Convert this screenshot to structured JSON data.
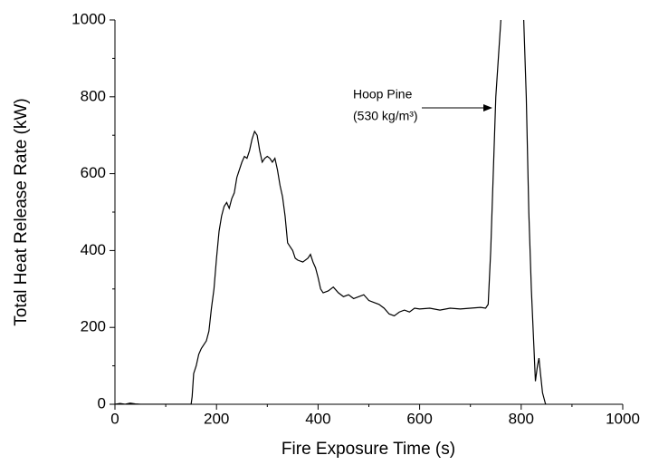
{
  "chart_data": {
    "type": "line",
    "xlabel": "Fire Exposure Time (s)",
    "ylabel": "Total Heat Release Rate  (kW)",
    "annotation": [
      "Hoop Pine",
      "(530 kg/m³)"
    ],
    "color": "#000000",
    "xlim": [
      0,
      1000
    ],
    "ylim": [
      0,
      1000
    ],
    "xticks": [
      0,
      200,
      400,
      600,
      800,
      1000
    ],
    "yticks": [
      0,
      200,
      400,
      600,
      800,
      1000
    ],
    "xminorticks": [
      100,
      300,
      500,
      700,
      900
    ],
    "yminorticks": [
      100,
      300,
      500,
      700,
      900
    ],
    "x": [
      0,
      10,
      20,
      30,
      40,
      50,
      100,
      150,
      152,
      155,
      160,
      165,
      170,
      180,
      185,
      190,
      195,
      200,
      205,
      210,
      215,
      220,
      225,
      230,
      235,
      240,
      245,
      250,
      255,
      260,
      265,
      270,
      275,
      280,
      285,
      290,
      295,
      300,
      305,
      310,
      315,
      320,
      325,
      330,
      335,
      340,
      345,
      350,
      355,
      360,
      370,
      380,
      385,
      390,
      395,
      400,
      405,
      410,
      420,
      430,
      440,
      450,
      460,
      470,
      480,
      490,
      500,
      510,
      520,
      530,
      540,
      550,
      560,
      570,
      580,
      590,
      600,
      620,
      640,
      660,
      680,
      700,
      720,
      730,
      735,
      740,
      745,
      750,
      755,
      760,
      765,
      800,
      805,
      810,
      815,
      820,
      825,
      828,
      832,
      835,
      838,
      842,
      848,
      850
    ],
    "values": [
      0,
      2,
      0,
      3,
      1,
      0,
      0,
      0,
      20,
      80,
      100,
      130,
      145,
      165,
      190,
      250,
      300,
      380,
      450,
      490,
      515,
      525,
      510,
      535,
      550,
      590,
      610,
      630,
      645,
      640,
      660,
      690,
      710,
      700,
      660,
      630,
      640,
      645,
      640,
      630,
      640,
      610,
      570,
      540,
      490,
      420,
      410,
      400,
      380,
      375,
      370,
      380,
      390,
      370,
      355,
      330,
      300,
      290,
      295,
      305,
      290,
      280,
      285,
      275,
      280,
      285,
      270,
      265,
      260,
      250,
      235,
      230,
      240,
      245,
      240,
      250,
      248,
      250,
      245,
      250,
      248,
      250,
      252,
      250,
      260,
      400,
      600,
      800,
      900,
      1000,
      1050,
      1050,
      1000,
      800,
      500,
      300,
      150,
      60,
      100,
      120,
      80,
      30,
      0,
      0
    ]
  }
}
